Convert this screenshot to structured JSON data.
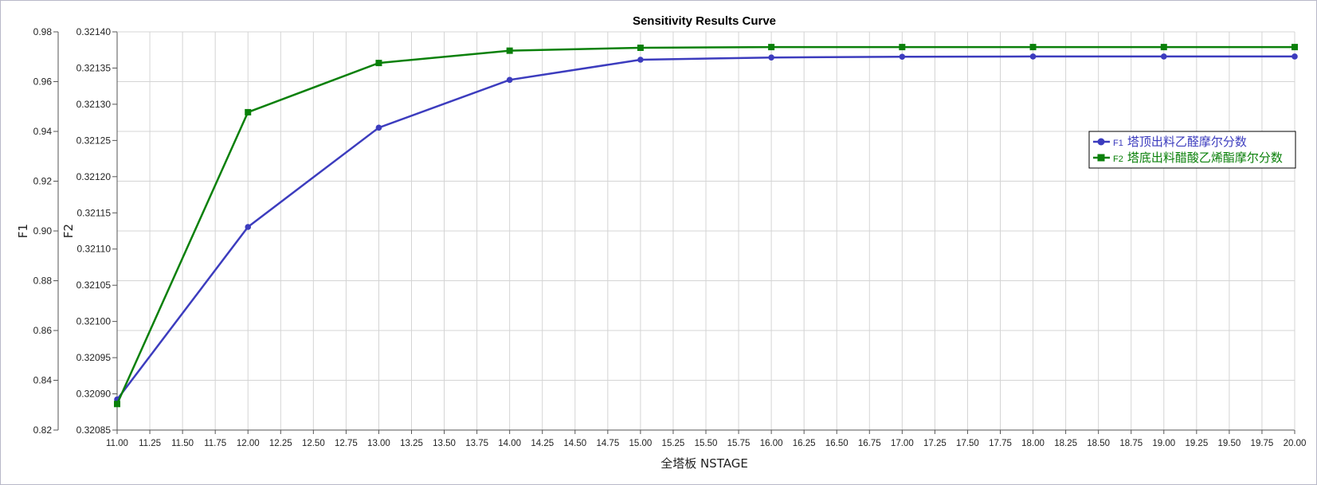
{
  "chart_data": {
    "type": "line",
    "title": "Sensitivity Results Curve",
    "xlabel": "全塔板 NSTAGE",
    "ylabel_left": "F1",
    "ylabel_right": "F2",
    "x": [
      11,
      12,
      13,
      14,
      15,
      16,
      17,
      18,
      19,
      20
    ],
    "xlim": [
      11,
      20
    ],
    "x_ticks": [
      "11.00",
      "11.25",
      "11.50",
      "11.75",
      "12.00",
      "12.25",
      "12.50",
      "12.75",
      "13.00",
      "13.25",
      "13.50",
      "13.75",
      "14.00",
      "14.25",
      "14.50",
      "14.75",
      "15.00",
      "15.25",
      "15.50",
      "15.75",
      "16.00",
      "16.25",
      "16.50",
      "16.75",
      "17.00",
      "17.25",
      "17.50",
      "17.75",
      "18.00",
      "18.25",
      "18.50",
      "18.75",
      "19.00",
      "19.25",
      "19.50",
      "19.75",
      "20.00"
    ],
    "ylim_left": [
      0.82,
      0.98
    ],
    "y_ticks_left": [
      "0.98",
      "0.96",
      "0.94",
      "0.92",
      "0.90",
      "0.88",
      "0.86",
      "0.84",
      "0.82"
    ],
    "ylim_right": [
      0.32085,
      0.3214
    ],
    "y_ticks_right": [
      "0.32140",
      "0.32135",
      "0.32130",
      "0.32125",
      "0.32120",
      "0.32115",
      "0.32110",
      "0.32105",
      "0.32100",
      "0.32095",
      "0.32090",
      "0.32085"
    ],
    "grid": true,
    "legend_position": "right",
    "series": [
      {
        "name": "塔顶出料乙醛摩尔分数",
        "legend_prefix": "F1",
        "axis": "left",
        "marker": "circle",
        "color": "#3c3cbe",
        "values": [
          0.8323,
          0.9016,
          0.9415,
          0.9607,
          0.9688,
          0.9697,
          0.97,
          0.9701,
          0.9701,
          0.9701
        ]
      },
      {
        "name": "塔底出料醋酸乙烯酯摩尔分数",
        "legend_prefix": "F2",
        "axis": "right",
        "marker": "square",
        "color": "#0a800a",
        "values": [
          0.320886,
          0.321289,
          0.321357,
          0.321374,
          0.321378,
          0.321379,
          0.321379,
          0.321379,
          0.321379,
          0.321379
        ]
      }
    ]
  }
}
